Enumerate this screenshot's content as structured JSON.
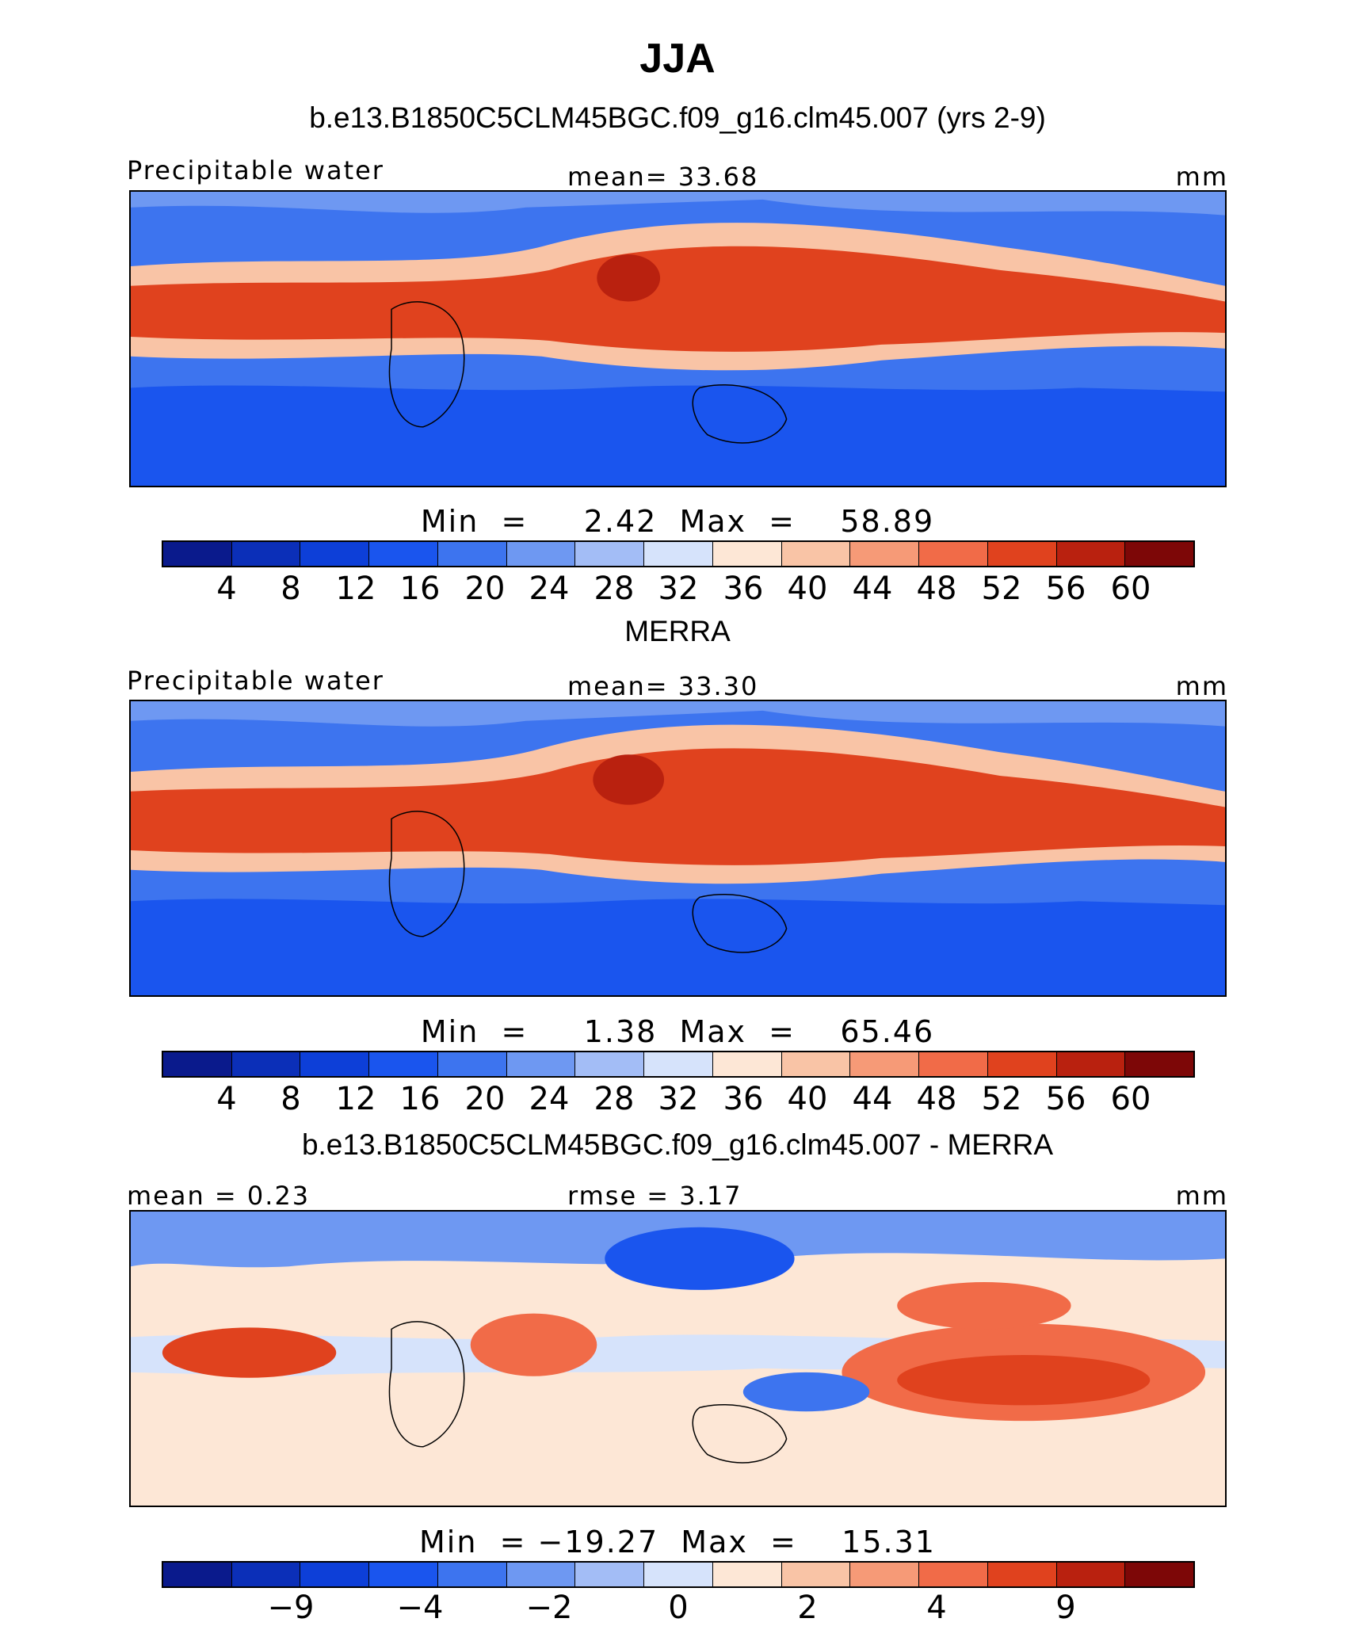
{
  "figure": {
    "title": "JJA"
  },
  "colors": {
    "palette": [
      "#0a1a8c",
      "#0b2fb8",
      "#0d3fd8",
      "#1a55ee",
      "#3d74ef",
      "#6e98f2",
      "#a3bdf6",
      "#d6e3fb",
      "#fde7d6",
      "#f9c4a6",
      "#f69a77",
      "#f16b48",
      "#e0421e",
      "#b9210f",
      "#7d0707"
    ],
    "land_outline": "#000000"
  },
  "chart_data": [
    {
      "type": "heatmap",
      "title": "b.e13.B1850C5CLM45BGC.f09_g16.clm45.007 (yrs 2-9)",
      "left_label": "Precipitable water",
      "center_label": "mean=   33.68",
      "units": "mm",
      "min_max_text": "Min  =     2.42  Max  =    58.89",
      "levels": [
        "4",
        "8",
        "12",
        "16",
        "20",
        "24",
        "28",
        "32",
        "36",
        "40",
        "44",
        "48",
        "52",
        "56",
        "60"
      ],
      "field_mean": 33.68,
      "field_min": 2.42,
      "field_max": 58.89
    },
    {
      "type": "heatmap",
      "title": "MERRA",
      "left_label": "Precipitable water",
      "center_label": "mean=   33.30",
      "units": "mm",
      "min_max_text": "Min  =     1.38  Max  =    65.46",
      "levels": [
        "4",
        "8",
        "12",
        "16",
        "20",
        "24",
        "28",
        "32",
        "36",
        "40",
        "44",
        "48",
        "52",
        "56",
        "60"
      ],
      "field_mean": 33.3,
      "field_min": 1.38,
      "field_max": 65.46
    },
    {
      "type": "heatmap",
      "title": "b.e13.B1850C5CLM45BGC.f09_g16.clm45.007 - MERRA",
      "left_label": "mean =    0.23",
      "center_label": "rmse =    3.17",
      "units": "mm",
      "min_max_text": "Min  = −19.27  Max  =    15.31",
      "levels": [
        "−9",
        "−4",
        "−2",
        "0",
        "2",
        "4",
        "9"
      ],
      "field_mean": 0.23,
      "field_rmse": 3.17,
      "field_min": -19.27,
      "field_max": 15.31
    }
  ]
}
